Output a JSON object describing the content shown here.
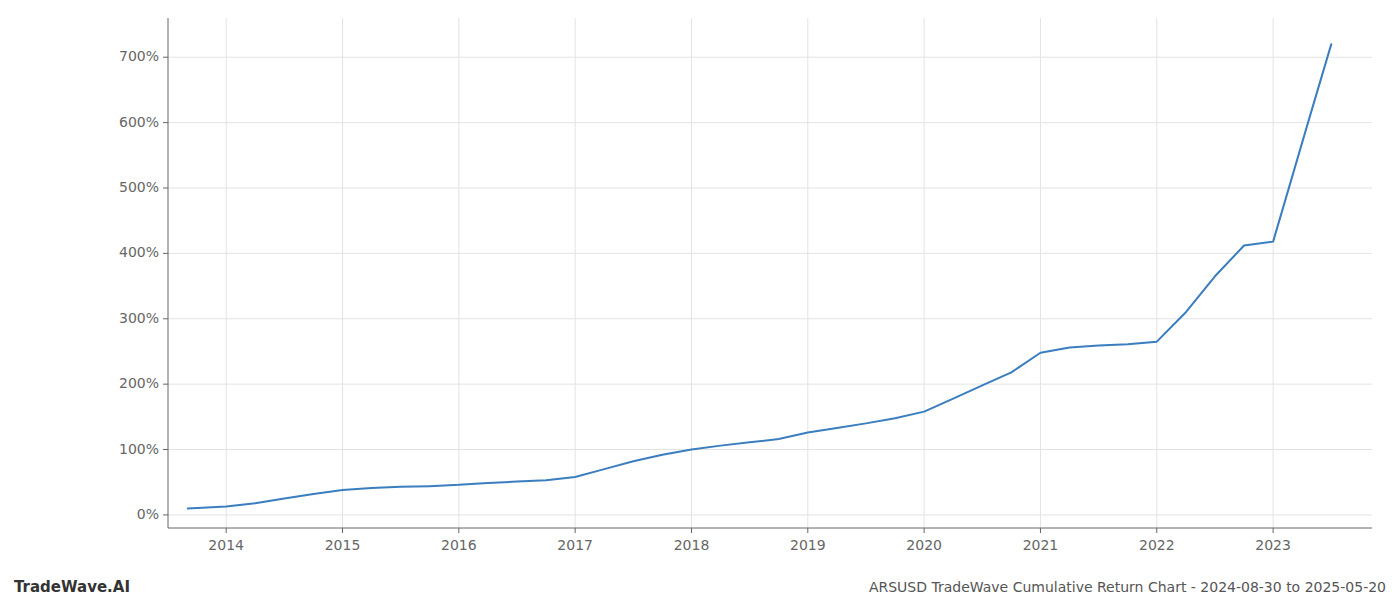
{
  "chart_data": {
    "type": "line",
    "title": "ARSUSD TradeWave Cumulative Return Chart - 2024-08-30 to 2025-05-20",
    "annotations": [
      "TradeWave.AI"
    ],
    "color": "#3a7ebf",
    "grid": true,
    "x": [
      2013.67,
      2014.0,
      2014.25,
      2014.5,
      2014.75,
      2015.0,
      2015.25,
      2015.5,
      2015.75,
      2016.0,
      2016.25,
      2016.5,
      2016.75,
      2017.0,
      2017.25,
      2017.5,
      2017.75,
      2018.0,
      2018.25,
      2018.5,
      2018.75,
      2019.0,
      2019.25,
      2019.5,
      2019.75,
      2020.0,
      2020.25,
      2020.5,
      2020.75,
      2021.0,
      2021.25,
      2021.5,
      2021.75,
      2022.0,
      2022.25,
      2022.5,
      2022.75,
      2023.0,
      2023.3,
      2023.5
    ],
    "values": [
      10,
      13,
      18,
      25,
      32,
      38,
      41,
      43,
      44,
      46,
      49,
      51,
      53,
      58,
      70,
      82,
      92,
      100,
      106,
      111,
      116,
      126,
      133,
      140,
      148,
      158,
      178,
      198,
      218,
      248,
      256,
      259,
      261,
      265,
      310,
      365,
      412,
      418,
      600,
      720
    ],
    "xlim": [
      2013.5,
      2023.85
    ],
    "xticks": [
      2014,
      2015,
      2016,
      2017,
      2018,
      2019,
      2020,
      2021,
      2022,
      2023
    ],
    "ylim": [
      -20,
      760
    ],
    "yticks": [
      {
        "value": 0,
        "label": "0%"
      },
      {
        "value": 100,
        "label": "100%"
      },
      {
        "value": 200,
        "label": "200%"
      },
      {
        "value": 300,
        "label": "300%"
      },
      {
        "value": 400,
        "label": "400%"
      },
      {
        "value": 500,
        "label": "500%"
      },
      {
        "value": 600,
        "label": "600%"
      },
      {
        "value": 700,
        "label": "700%"
      }
    ]
  }
}
